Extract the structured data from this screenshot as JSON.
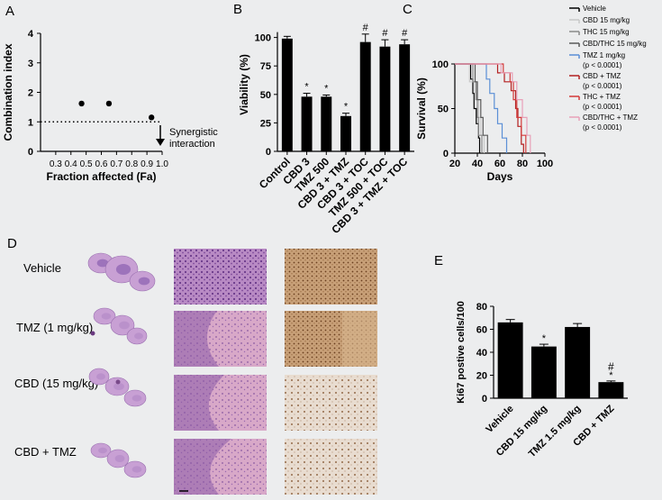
{
  "panels": {
    "A": {
      "letter": "A",
      "chart_data": {
        "type": "scatter",
        "xlabel": "Fraction affected (Fa)",
        "ylabel": "Combination index",
        "xlim": [
          0.2,
          1.0
        ],
        "ylim": [
          0,
          4
        ],
        "xticks": [
          "0.3",
          "0.4",
          "0.5",
          "0.6",
          "0.7",
          "0.8",
          "0.9",
          "1.0"
        ],
        "yticks": [
          "0",
          "1",
          "2",
          "3",
          "4"
        ],
        "points": [
          [
            0.47,
            1.62
          ],
          [
            0.65,
            1.62
          ],
          [
            0.93,
            1.15
          ]
        ],
        "reference_line": 1.0,
        "annotation": "Synergistic interaction"
      }
    },
    "B": {
      "letter": "B",
      "chart_data": {
        "type": "bar",
        "ylabel": "Viability (%)",
        "ylim": [
          0,
          125
        ],
        "yticks": [
          "0",
          "25",
          "50",
          "75",
          "100"
        ],
        "categories": [
          "Control",
          "CBD 3",
          "TMZ 500",
          "CBD 3 + TMZ",
          "CBD 3 + TOC",
          "TMZ 500 + TOC",
          "CBD 3 + TMZ + TOC"
        ],
        "values": [
          99,
          48,
          48,
          31,
          96,
          92,
          94
        ],
        "errors": [
          2,
          3,
          1.5,
          2.5,
          7,
          6,
          4
        ],
        "marks": [
          "",
          "*",
          "*",
          "*",
          "#",
          "#",
          "#"
        ]
      }
    },
    "C": {
      "letter": "C",
      "chart_data": {
        "type": "line",
        "ylabel": "Survival (%)",
        "xlabel": "Days",
        "xlim": [
          20,
          100
        ],
        "ylim": [
          0,
          100
        ],
        "xticks": [
          "20",
          "40",
          "60",
          "80",
          "100"
        ],
        "yticks": [
          "0",
          "50",
          "100"
        ],
        "series": [
          {
            "name": "Vehicle",
            "color": "#000000",
            "steps": [
              [
                20,
                100
              ],
              [
                34,
                100
              ],
              [
                34,
                83
              ],
              [
                36,
                83
              ],
              [
                36,
                67
              ],
              [
                37,
                67
              ],
              [
                37,
                50
              ],
              [
                39,
                50
              ],
              [
                39,
                33
              ],
              [
                41,
                33
              ],
              [
                41,
                17
              ],
              [
                42,
                17
              ],
              [
                42,
                0
              ]
            ]
          },
          {
            "name": "CBD 15 mg/kg",
            "color": "#c8c8c8",
            "steps": [
              [
                20,
                100
              ],
              [
                33,
                100
              ],
              [
                33,
                80
              ],
              [
                38,
                80
              ],
              [
                38,
                60
              ],
              [
                41,
                60
              ],
              [
                41,
                40
              ],
              [
                43,
                40
              ],
              [
                43,
                20
              ],
              [
                46,
                20
              ],
              [
                46,
                0
              ]
            ]
          },
          {
            "name": "THC 15 mg/kg",
            "color": "#8a8a8a",
            "steps": [
              [
                20,
                100
              ],
              [
                36,
                100
              ],
              [
                36,
                80
              ],
              [
                39,
                80
              ],
              [
                39,
                60
              ],
              [
                40,
                60
              ],
              [
                40,
                40
              ],
              [
                41,
                40
              ],
              [
                41,
                20
              ],
              [
                44,
                20
              ],
              [
                44,
                0
              ]
            ]
          },
          {
            "name": "CBD/THC 15 mg/kg",
            "color": "#5a5a5a",
            "steps": [
              [
                20,
                100
              ],
              [
                38,
                100
              ],
              [
                38,
                80
              ],
              [
                40,
                80
              ],
              [
                40,
                60
              ],
              [
                43,
                60
              ],
              [
                43,
                40
              ],
              [
                45,
                40
              ],
              [
                45,
                20
              ],
              [
                49,
                20
              ],
              [
                49,
                0
              ]
            ]
          },
          {
            "name": "TMZ 1 mg/kg",
            "color": "#5b8fd6",
            "steps": [
              [
                20,
                100
              ],
              [
                48,
                100
              ],
              [
                48,
                83
              ],
              [
                51,
                83
              ],
              [
                51,
                67
              ],
              [
                55,
                67
              ],
              [
                55,
                50
              ],
              [
                58,
                50
              ],
              [
                58,
                33
              ],
              [
                62,
                33
              ],
              [
                62,
                17
              ],
              [
                66,
                17
              ],
              [
                66,
                0
              ]
            ]
          },
          {
            "name": "CBD + TMZ",
            "color": "#b32020",
            "steps": [
              [
                20,
                100
              ],
              [
                58,
                100
              ],
              [
                58,
                90
              ],
              [
                64,
                90
              ],
              [
                64,
                80
              ],
              [
                70,
                80
              ],
              [
                70,
                70
              ],
              [
                74,
                70
              ],
              [
                74,
                50
              ],
              [
                76,
                50
              ],
              [
                76,
                30
              ],
              [
                79,
                30
              ],
              [
                79,
                10
              ],
              [
                81,
                10
              ],
              [
                81,
                0
              ]
            ]
          },
          {
            "name": "THC + TMZ",
            "color": "#d43a3a",
            "steps": [
              [
                20,
                100
              ],
              [
                63,
                100
              ],
              [
                63,
                90
              ],
              [
                69,
                90
              ],
              [
                69,
                80
              ],
              [
                72,
                80
              ],
              [
                72,
                60
              ],
              [
                75,
                60
              ],
              [
                75,
                40
              ],
              [
                79,
                40
              ],
              [
                79,
                20
              ],
              [
                83,
                20
              ],
              [
                83,
                0
              ]
            ]
          },
          {
            "name": "CBD/THC + TMZ",
            "color": "#e8a0b8",
            "steps": [
              [
                20,
                100
              ],
              [
                61,
                100
              ],
              [
                61,
                90
              ],
              [
                71,
                90
              ],
              [
                71,
                80
              ],
              [
                75,
                80
              ],
              [
                75,
                60
              ],
              [
                80,
                60
              ],
              [
                80,
                40
              ],
              [
                84,
                40
              ],
              [
                84,
                20
              ],
              [
                87,
                20
              ],
              [
                87,
                0
              ]
            ]
          }
        ],
        "legend": [
          {
            "label": "Vehicle",
            "color": "#000000"
          },
          {
            "label": "CBD 15 mg/kg",
            "color": "#c8c8c8"
          },
          {
            "label": "THC 15 mg/kg",
            "color": "#8a8a8a"
          },
          {
            "label": "CBD/THC 15 mg/kg",
            "color": "#5a5a5a"
          },
          {
            "label": "TMZ 1 mg/kg",
            "sub": "(p < 0.0001)",
            "color": "#5b8fd6"
          },
          {
            "label": "CBD + TMZ",
            "sub": "(p < 0.0001)",
            "color": "#b32020"
          },
          {
            "label": "THC + TMZ",
            "sub": "(p < 0.0001)",
            "color": "#d43a3a"
          },
          {
            "label": "CBD/THC + TMZ",
            "sub": "(p < 0.0001)",
            "color": "#e8a0b8"
          }
        ]
      }
    },
    "D": {
      "letter": "D",
      "rows": [
        "Vehicle",
        "TMZ (1 mg/kg)",
        "CBD (15 mg/kg)",
        "CBD + TMZ"
      ]
    },
    "E": {
      "letter": "E",
      "chart_data": {
        "type": "bar",
        "ylabel": "Ki67 postive cells/100",
        "ylim": [
          0,
          80
        ],
        "yticks": [
          "0",
          "20",
          "40",
          "60",
          "80"
        ],
        "categories": [
          "Vehicle",
          "CBD 15 mg/kg",
          "TMZ 1.5 mg/kg",
          "CBD + TMZ"
        ],
        "values": [
          66,
          45,
          62,
          14
        ],
        "errors": [
          2.5,
          2,
          3,
          1
        ],
        "marks": [
          "",
          "*",
          "",
          "*"
        ],
        "marks2": [
          "",
          "",
          "",
          "#"
        ]
      }
    }
  }
}
